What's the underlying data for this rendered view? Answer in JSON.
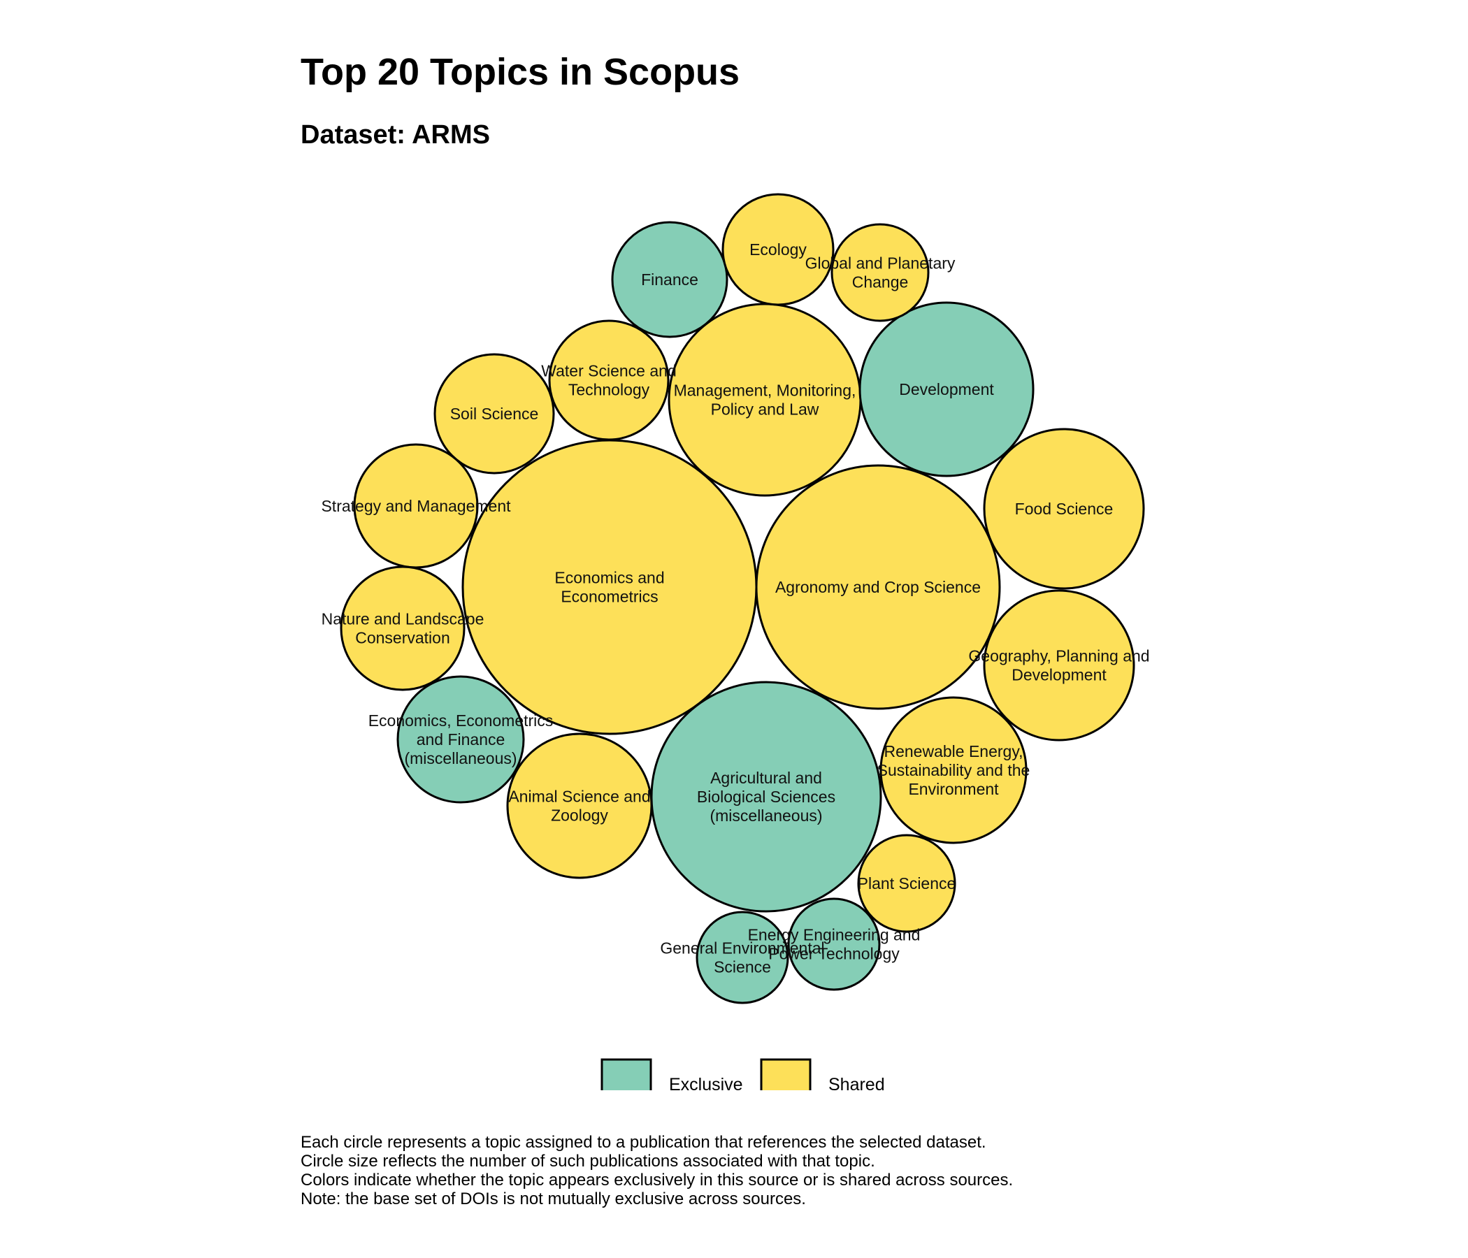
{
  "title": "Top 20 Topics in Scopus",
  "subtitle": "Dataset: ARMS",
  "colors": {
    "Exclusive": "#85ceb6",
    "Shared": "#fde059"
  },
  "legend": [
    {
      "label": "Exclusive",
      "color": "#85ceb6"
    },
    {
      "label": "Shared",
      "color": "#fde059"
    }
  ],
  "chart_data": {
    "type": "bubble",
    "title": "Top 20 Topics in Scopus",
    "subtitle": "Dataset: ARMS",
    "legend_position": "bottom",
    "items": [
      {
        "label": "Economics and Econometrics",
        "group": "Shared",
        "relative_size": 1.0
      },
      {
        "label": "Agronomy and Crop Science",
        "group": "Shared",
        "relative_size": 0.68
      },
      {
        "label": "Agricultural and Biological Sciences (miscellaneous)",
        "group": "Exclusive",
        "relative_size": 0.6
      },
      {
        "label": "Management, Monitoring, Policy and Law",
        "group": "Shared",
        "relative_size": 0.42
      },
      {
        "label": "Development",
        "group": "Exclusive",
        "relative_size": 0.35
      },
      {
        "label": "Food Science",
        "group": "Shared",
        "relative_size": 0.29
      },
      {
        "label": "Geography, Planning and Development",
        "group": "Shared",
        "relative_size": 0.26
      },
      {
        "label": "Renewable Energy, Sustainability and the Environment",
        "group": "Shared",
        "relative_size": 0.24
      },
      {
        "label": "Animal Science and Zoology",
        "group": "Shared",
        "relative_size": 0.24
      },
      {
        "label": "Strategy and Management",
        "group": "Shared",
        "relative_size": 0.17
      },
      {
        "label": "Nature and Landscape Conservation",
        "group": "Shared",
        "relative_size": 0.17
      },
      {
        "label": "Economics, Econometrics and Finance (miscellaneous)",
        "group": "Exclusive",
        "relative_size": 0.19
      },
      {
        "label": "Water Science and Technology",
        "group": "Shared",
        "relative_size": 0.16
      },
      {
        "label": "Soil Science",
        "group": "Shared",
        "relative_size": 0.16
      },
      {
        "label": "Finance",
        "group": "Exclusive",
        "relative_size": 0.15
      },
      {
        "label": "Ecology",
        "group": "Shared",
        "relative_size": 0.14
      },
      {
        "label": "Global and Planetary Change",
        "group": "Shared",
        "relative_size": 0.11
      },
      {
        "label": "Plant Science",
        "group": "Shared",
        "relative_size": 0.11
      },
      {
        "label": "Energy Engineering and Power Technology",
        "group": "Exclusive",
        "relative_size": 0.1
      },
      {
        "label": "General Environmental Science",
        "group": "Exclusive",
        "relative_size": 0.1
      }
    ]
  },
  "caption": [
    "Each circle represents a topic assigned to a publication that references the selected dataset.",
    "Circle size reflects the number of such publications associated with that topic.",
    "Colors indicate whether the topic appears exclusively in this source or is shared across sources.",
    "Note: the base set of DOIs is not mutually exclusive across sources."
  ]
}
